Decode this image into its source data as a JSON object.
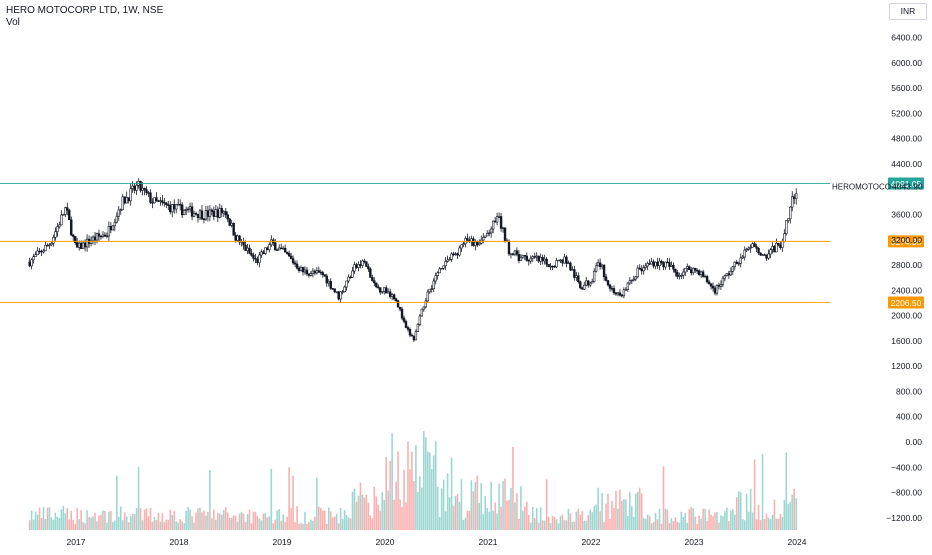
{
  "header": {
    "title": "HERO MOTOCORP LTD, 1W, NSE",
    "volume_label": "Vol",
    "currency": "INR"
  },
  "chart_data": {
    "type": "candlestick",
    "interval": "1W",
    "x_tick_labels": [
      "2017",
      "2018",
      "2019",
      "2020",
      "2021",
      "2022",
      "2023",
      "2024"
    ],
    "y_tick_labels": [
      "6400.00",
      "6000.00",
      "5600.00",
      "5200.00",
      "4800.00",
      "4400.00",
      "3600.00",
      "3200.00",
      "2800.00",
      "2400.00",
      "2000.00",
      "1600.00",
      "1200.00",
      "800.00",
      "400.00",
      "0.00",
      "−400.00",
      "−800.00",
      "−1200.00"
    ],
    "ylim": [
      -1460,
      6700
    ],
    "grid": false,
    "price_anchors": [
      {
        "t": 2016.55,
        "p": 2850
      },
      {
        "t": 2016.75,
        "p": 3150
      },
      {
        "t": 2016.9,
        "p": 3700
      },
      {
        "t": 2017.0,
        "p": 3050
      },
      {
        "t": 2017.15,
        "p": 3200
      },
      {
        "t": 2017.3,
        "p": 3300
      },
      {
        "t": 2017.45,
        "p": 3800
      },
      {
        "t": 2017.6,
        "p": 4050
      },
      {
        "t": 2017.75,
        "p": 3800
      },
      {
        "t": 2017.95,
        "p": 3700
      },
      {
        "t": 2018.1,
        "p": 3650
      },
      {
        "t": 2018.25,
        "p": 3600
      },
      {
        "t": 2018.45,
        "p": 3650
      },
      {
        "t": 2018.55,
        "p": 3250
      },
      {
        "t": 2018.75,
        "p": 2850
      },
      {
        "t": 2018.9,
        "p": 3150
      },
      {
        "t": 2019.05,
        "p": 2950
      },
      {
        "t": 2019.2,
        "p": 2700
      },
      {
        "t": 2019.4,
        "p": 2650
      },
      {
        "t": 2019.55,
        "p": 2300
      },
      {
        "t": 2019.7,
        "p": 2750
      },
      {
        "t": 2019.8,
        "p": 2850
      },
      {
        "t": 2019.9,
        "p": 2450
      },
      {
        "t": 2020.0,
        "p": 2400
      },
      {
        "t": 2020.1,
        "p": 2300
      },
      {
        "t": 2020.2,
        "p": 1800
      },
      {
        "t": 2020.28,
        "p": 1620
      },
      {
        "t": 2020.4,
        "p": 2300
      },
      {
        "t": 2020.55,
        "p": 2800
      },
      {
        "t": 2020.7,
        "p": 3000
      },
      {
        "t": 2020.8,
        "p": 3200
      },
      {
        "t": 2020.9,
        "p": 3100
      },
      {
        "t": 2021.0,
        "p": 3300
      },
      {
        "t": 2021.1,
        "p": 3550
      },
      {
        "t": 2021.2,
        "p": 3050
      },
      {
        "t": 2021.3,
        "p": 2900
      },
      {
        "t": 2021.45,
        "p": 2900
      },
      {
        "t": 2021.6,
        "p": 2800
      },
      {
        "t": 2021.75,
        "p": 2900
      },
      {
        "t": 2021.9,
        "p": 2450
      },
      {
        "t": 2022.0,
        "p": 2550
      },
      {
        "t": 2022.08,
        "p": 2850
      },
      {
        "t": 2022.18,
        "p": 2450
      },
      {
        "t": 2022.28,
        "p": 2300
      },
      {
        "t": 2022.45,
        "p": 2700
      },
      {
        "t": 2022.6,
        "p": 2850
      },
      {
        "t": 2022.75,
        "p": 2800
      },
      {
        "t": 2022.85,
        "p": 2650
      },
      {
        "t": 2022.95,
        "p": 2750
      },
      {
        "t": 2023.05,
        "p": 2700
      },
      {
        "t": 2023.2,
        "p": 2400
      },
      {
        "t": 2023.3,
        "p": 2600
      },
      {
        "t": 2023.45,
        "p": 2900
      },
      {
        "t": 2023.55,
        "p": 3100
      },
      {
        "t": 2023.7,
        "p": 2950
      },
      {
        "t": 2023.85,
        "p": 3150
      },
      {
        "t": 2023.93,
        "p": 3700
      },
      {
        "t": 2024.0,
        "p": 4050
      }
    ],
    "horizontal_lines": [
      {
        "price": 4091.05,
        "label": "4091.05",
        "color": "#26a69a"
      },
      {
        "price": 3174.35,
        "label": "3174.35",
        "color": "#ff9800"
      },
      {
        "price": 2206.5,
        "label": "2206.50",
        "color": "#ff9800"
      }
    ],
    "last_price": {
      "symbol": "HEROMOTOCO",
      "value": "4043.90"
    },
    "colors": {
      "up": "#131722",
      "down": "#131722",
      "vol_up": "#26a69a",
      "vol_down": "#ef5350"
    }
  }
}
